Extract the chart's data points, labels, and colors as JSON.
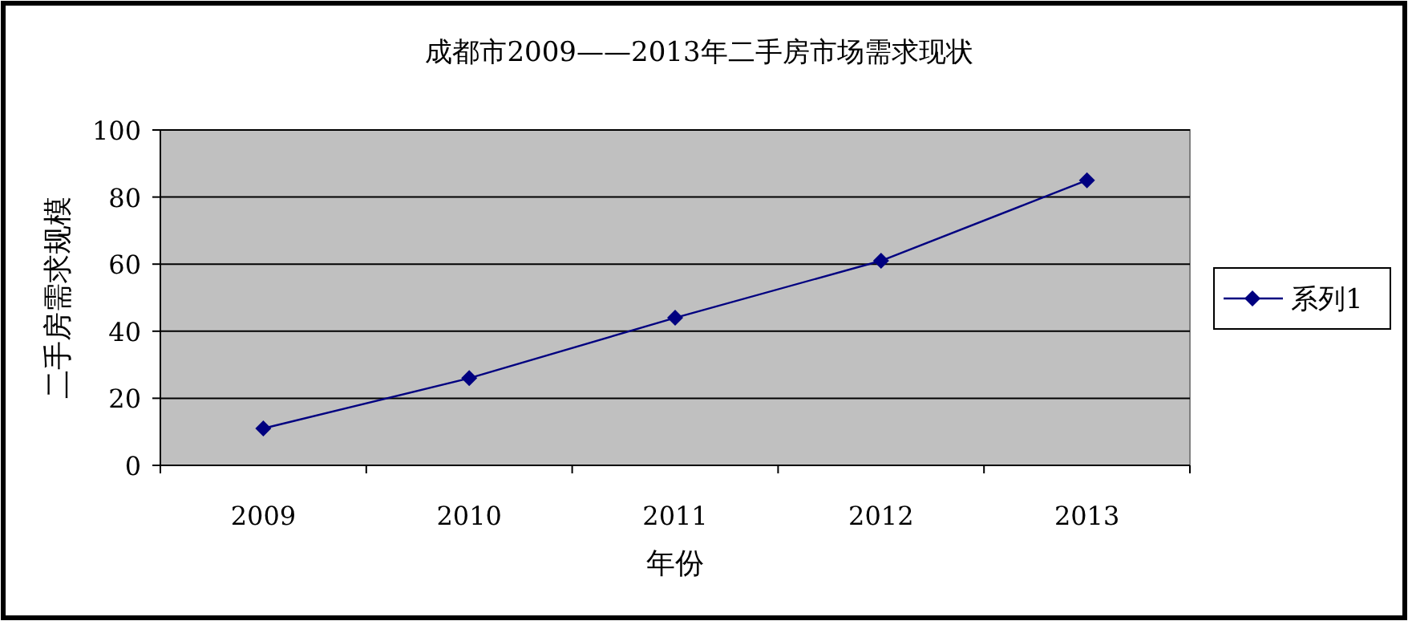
{
  "chart_data": {
    "type": "line",
    "title": "成都市2009——2013年二手房市场需求现状",
    "xlabel": "年份",
    "ylabel": "二手房需求规模",
    "categories": [
      "2009",
      "2010",
      "2011",
      "2012",
      "2013"
    ],
    "series": [
      {
        "name": "系列1",
        "color": "#000080",
        "values": [
          11,
          26,
          44,
          61,
          85
        ]
      }
    ],
    "ylim": [
      0,
      100
    ],
    "yticks": [
      0,
      20,
      40,
      60,
      80,
      100
    ],
    "grid": "y",
    "legend": "right",
    "marker": "diamond"
  }
}
